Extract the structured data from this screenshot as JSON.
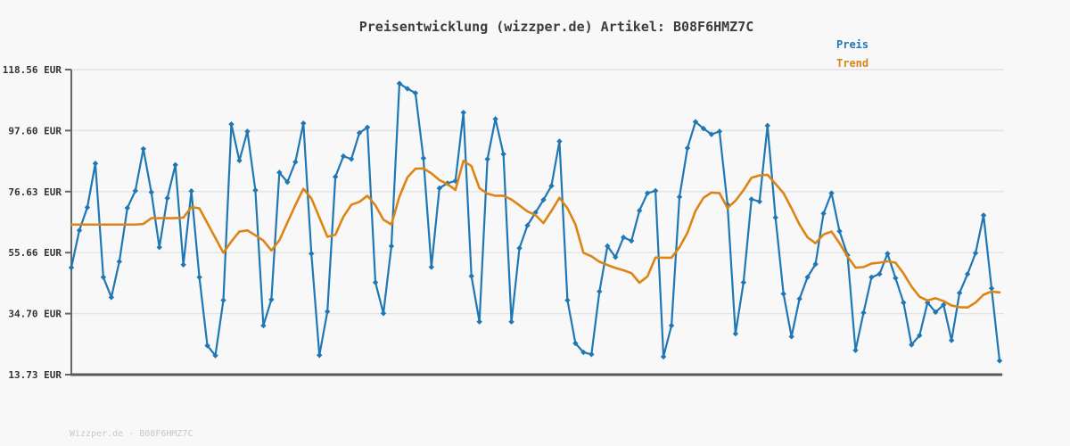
{
  "title": "Preisentwicklung (wizzper.de) Artikel: B08F6HMZ7C",
  "footer": "Wizzper.de - B08F6HMZ7C",
  "legend": [
    {
      "label": "Preis",
      "color": "#1f77b4"
    },
    {
      "label": "Trend",
      "color": "#dd8415"
    }
  ],
  "colors": {
    "background": "#f8f8f8",
    "gridline": "#e3e3e3",
    "axis_spine": "#666666",
    "tick_label": "#333333",
    "price_line": "#1f77b4",
    "trend_line": "#dd8415",
    "watermark": "#c9c9c9"
  },
  "chart_data": {
    "type": "line",
    "title": "Preisentwicklung (wizzper.de) Artikel: B08F6HMZ7C",
    "xlabel": "",
    "ylabel": "",
    "grid": true,
    "legend_position": "top-right",
    "x_axis_labels_visible": false,
    "ylim": [
      13.73,
      118.56
    ],
    "y_ticks": [
      {
        "value": 118.56,
        "label": "118.56 EUR"
      },
      {
        "value": 97.6,
        "label": "97.60 EUR"
      },
      {
        "value": 76.63,
        "label": "76.63 EUR"
      },
      {
        "value": 55.66,
        "label": "55.66 EUR"
      },
      {
        "value": 34.7,
        "label": "34.70 EUR"
      },
      {
        "value": 13.73,
        "label": "13.73 EUR"
      }
    ],
    "x": "index 0..116 (equally spaced price observations, no visible x labels)",
    "series": [
      {
        "name": "Preis",
        "color": "#1f77b4",
        "marker": "diamond",
        "line_width": 2.2,
        "values": [
          50.5,
          63.3,
          71.2,
          86.3,
          47.2,
          40.3,
          52.6,
          71.0,
          76.9,
          91.3,
          76.4,
          57.5,
          74.4,
          85.8,
          51.5,
          76.8,
          47.2,
          23.7,
          20.3,
          39.3,
          99.8,
          87.3,
          97.3,
          77.1,
          30.6,
          39.5,
          83.2,
          79.9,
          86.8,
          100.1,
          55.3,
          20.4,
          35.4,
          81.7,
          88.8,
          87.8,
          96.8,
          98.7,
          45.4,
          34.8,
          57.9,
          113.8,
          112.0,
          110.5,
          88.1,
          50.7,
          77.8,
          79.5,
          80.3,
          103.8,
          47.6,
          31.9,
          87.8,
          101.6,
          89.5,
          31.9,
          57.2,
          65.0,
          69.4,
          73.8,
          78.6,
          93.9,
          39.3,
          24.5,
          21.4,
          20.7,
          42.3,
          57.9,
          54.1,
          60.9,
          59.7,
          70.1,
          76.1,
          76.9,
          19.9,
          30.6,
          74.8,
          91.6,
          100.6,
          98.3,
          96.3,
          97.3,
          72.2,
          27.8,
          45.4,
          74.0,
          73.2,
          99.3,
          67.7,
          41.5,
          26.8,
          39.8,
          47.2,
          51.7,
          69.1,
          76.1,
          63.0,
          54.8,
          22.1,
          35.0,
          47.2,
          48.3,
          55.3,
          46.9,
          38.5,
          24.0,
          27.2,
          38.5,
          35.2,
          37.7,
          25.5,
          41.8,
          48.3,
          55.5,
          68.5,
          43.4,
          18.5
        ]
      },
      {
        "name": "Trend",
        "color": "#dd8415",
        "marker": "none",
        "line_width": 2.6,
        "values": [
          65.3,
          65.3,
          65.3,
          65.3,
          65.3,
          65.3,
          65.3,
          65.3,
          65.3,
          65.5,
          67.5,
          67.5,
          67.5,
          67.5,
          67.7,
          71.3,
          70.9,
          65.8,
          60.7,
          55.6,
          59.5,
          62.9,
          63.3,
          61.6,
          59.8,
          56.4,
          59.9,
          66.0,
          72.0,
          77.6,
          74.3,
          67.7,
          61.1,
          61.8,
          68.0,
          72.1,
          73.1,
          75.2,
          71.9,
          67.0,
          65.3,
          74.9,
          81.5,
          84.5,
          84.6,
          82.9,
          80.6,
          79.2,
          77.2,
          87.2,
          85.4,
          77.8,
          75.9,
          75.2,
          75.2,
          73.9,
          71.9,
          69.8,
          68.6,
          65.8,
          70.0,
          74.5,
          70.9,
          65.3,
          55.6,
          54.4,
          52.5,
          51.4,
          50.4,
          49.6,
          48.6,
          45.3,
          47.5,
          54.0,
          53.9,
          53.9,
          57.5,
          62.5,
          70.0,
          74.5,
          76.3,
          76.1,
          71.0,
          73.5,
          77.1,
          81.4,
          82.2,
          82.4,
          79.3,
          76.1,
          70.9,
          65.3,
          60.9,
          58.9,
          61.9,
          62.9,
          58.9,
          54.3,
          50.5,
          50.7,
          51.9,
          52.2,
          52.7,
          52.2,
          48.5,
          44.0,
          40.5,
          39.2,
          40.0,
          39.0,
          37.5,
          36.9,
          36.8,
          38.5,
          41.2,
          42.3,
          42.0
        ]
      }
    ]
  }
}
